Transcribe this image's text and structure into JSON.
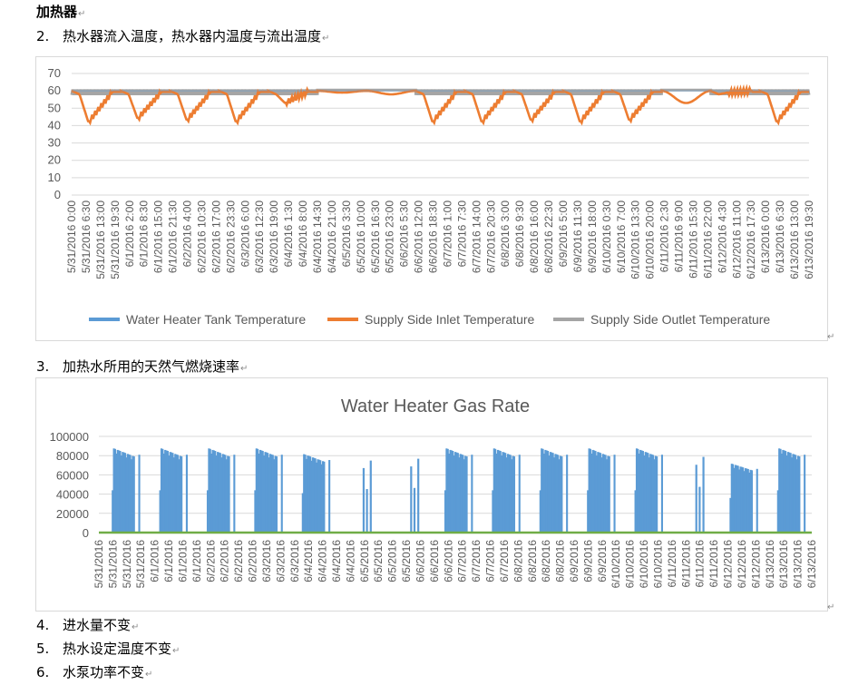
{
  "document": {
    "heading": "加热器",
    "items": [
      {
        "num": "2.",
        "text": "热水器流入温度，热水器内温度与流出温度"
      },
      {
        "num": "3.",
        "text": "加热水所用的天然气燃烧速率"
      },
      {
        "num": "4.",
        "text": "进水量不变"
      },
      {
        "num": "5.",
        "text": "热水设定温度不变"
      },
      {
        "num": "6.",
        "text": "水泵功率不变"
      }
    ],
    "paragraph_mark": "↵"
  },
  "chart_data": [
    {
      "type": "line",
      "title": "",
      "ylim": [
        0,
        70
      ],
      "yticks": [
        0,
        10,
        20,
        30,
        40,
        50,
        60,
        70
      ],
      "grid": true,
      "legend_position": "bottom",
      "x_tick_labels": [
        "5/31/2016 0:00",
        "5/31/2016 6:30",
        "5/31/2016 13:00",
        "5/31/2016 19:30",
        "6/1/2016 2:00",
        "6/1/2016 8:30",
        "6/1/2016 15:00",
        "6/1/2016 21:30",
        "6/2/2016 4:00",
        "6/2/2016 10:30",
        "6/2/2016 17:00",
        "6/2/2016 23:30",
        "6/3/2016 6:00",
        "6/3/2016 12:30",
        "6/3/2016 19:00",
        "6/4/2016 1:30",
        "6/4/2016 8:00",
        "6/4/2016 14:30",
        "6/4/2016 21:00",
        "6/5/2016 3:30",
        "6/5/2016 10:00",
        "6/5/2016 16:30",
        "6/5/2016 23:00",
        "6/6/2016 5:30",
        "6/6/2016 12:00",
        "6/6/2016 18:30",
        "6/7/2016 1:00",
        "6/7/2016 7:30",
        "6/7/2016 14:00",
        "6/7/2016 20:30",
        "6/8/2016 3:00",
        "6/8/2016 9:30",
        "6/8/2016 16:00",
        "6/8/2016 22:30",
        "6/9/2016 5:00",
        "6/9/2016 11:30",
        "6/9/2016 18:00",
        "6/10/2016 0:30",
        "6/10/2016 7:00",
        "6/10/2016 13:30",
        "6/10/2016 20:00",
        "6/11/2016 2:30",
        "6/11/2016 9:00",
        "6/11/2016 15:30",
        "6/11/2016 22:00",
        "6/12/2016 4:30",
        "6/12/2016 11:00",
        "6/12/2016 17:30",
        "6/13/2016 0:00",
        "6/13/2016 6:30",
        "6/13/2016 13:00",
        "6/13/2016 19:30"
      ],
      "daily_inlet_min": [
        42,
        44,
        43,
        42,
        53,
        59,
        58,
        42,
        42,
        43,
        42,
        43,
        53,
        59,
        42
      ],
      "weekend_days": [
        5,
        6,
        12
      ],
      "baseline_temperature": 60,
      "series": [
        {
          "name": "Water Heater Tank Temperature",
          "color": "#5b9bd5"
        },
        {
          "name": "Supply Side Inlet Temperature",
          "color": "#ed7d31"
        },
        {
          "name": "Supply Side Outlet Temperature",
          "color": "#a5a5a5"
        }
      ]
    },
    {
      "type": "bar",
      "title": "Water Heater Gas Rate",
      "ylim": [
        0,
        100000
      ],
      "yticks": [
        "0",
        "20000",
        "40000",
        "60000",
        "80000",
        "100000"
      ],
      "grid": true,
      "bar_color": "#5b9bd5",
      "baseline_color": "#70ad47",
      "x_tick_labels": [
        "5/31/2016",
        "5/31/2016",
        "5/31/2016",
        "5/31/2016",
        "6/1/2016",
        "6/1/2016",
        "6/1/2016",
        "6/1/2016",
        "6/2/2016",
        "6/2/2016",
        "6/2/2016",
        "6/2/2016",
        "6/3/2016",
        "6/3/2016",
        "6/3/2016",
        "6/4/2016",
        "6/4/2016",
        "6/4/2016",
        "6/4/2016",
        "6/5/2016",
        "6/5/2016",
        "6/5/2016",
        "6/5/2016",
        "6/6/2016",
        "6/6/2016",
        "6/6/2016",
        "6/7/2016",
        "6/7/2016",
        "6/7/2016",
        "6/7/2016",
        "6/8/2016",
        "6/8/2016",
        "6/8/2016",
        "6/8/2016",
        "6/9/2016",
        "6/9/2016",
        "6/9/2016",
        "6/10/2016",
        "6/10/2016",
        "6/10/2016",
        "6/10/2016",
        "6/11/2016",
        "6/11/2016",
        "6/11/2016",
        "6/11/2016",
        "6/12/2016",
        "6/12/2016",
        "6/12/2016",
        "6/13/2016",
        "6/13/2016",
        "6/13/2016",
        "6/13/2016"
      ],
      "daily_peak": [
        88000,
        88000,
        88000,
        88000,
        82000,
        78000,
        80000,
        88000,
        88000,
        88000,
        88000,
        88000,
        82000,
        72000,
        88000
      ],
      "weekend_days": [
        5,
        6,
        12
      ]
    }
  ]
}
